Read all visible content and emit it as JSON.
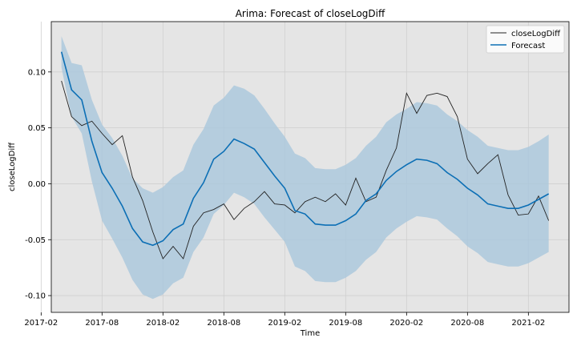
{
  "chart_data": {
    "type": "line",
    "title": "Arima: Forecast of closeLogDiff",
    "xlabel": "Time",
    "ylabel": "closeLogDiff",
    "xlim": [
      "2017-03-01",
      "2021-06-01"
    ],
    "ylim": [
      -0.115,
      0.145
    ],
    "x_ticks": [
      "2017-02",
      "2017-08",
      "2018-02",
      "2018-08",
      "2019-02",
      "2019-08",
      "2020-02",
      "2020-08",
      "2021-02"
    ],
    "y_ticks": [
      -0.1,
      -0.05,
      0.0,
      0.05,
      0.1
    ],
    "grid": true,
    "legend": "top-right",
    "colors": {
      "actual": "#222222",
      "forecast": "#0c6fb5",
      "band": "#a9c7dc",
      "plot_bg": "#e5e5e5"
    },
    "x": [
      "2017-04",
      "2017-05",
      "2017-06",
      "2017-07",
      "2017-08",
      "2017-09",
      "2017-10",
      "2017-11",
      "2017-12",
      "2018-01",
      "2018-02",
      "2018-03",
      "2018-04",
      "2018-05",
      "2018-06",
      "2018-07",
      "2018-08",
      "2018-09",
      "2018-10",
      "2018-11",
      "2018-12",
      "2019-01",
      "2019-02",
      "2019-03",
      "2019-04",
      "2019-05",
      "2019-06",
      "2019-07",
      "2019-08",
      "2019-09",
      "2019-10",
      "2019-11",
      "2019-12",
      "2020-01",
      "2020-02",
      "2020-03",
      "2020-04",
      "2020-05",
      "2020-06",
      "2020-07",
      "2020-08",
      "2020-09",
      "2020-10",
      "2020-11",
      "2020-12",
      "2021-01",
      "2021-02",
      "2021-03",
      "2021-04"
    ],
    "series": [
      {
        "name": "closeLogDiff",
        "values": [
          0.092,
          0.06,
          0.052,
          0.056,
          0.045,
          0.035,
          0.043,
          0.006,
          -0.015,
          -0.043,
          -0.067,
          -0.056,
          -0.067,
          -0.038,
          -0.026,
          -0.023,
          -0.018,
          -0.032,
          -0.022,
          -0.016,
          -0.007,
          -0.018,
          -0.019,
          -0.026,
          -0.016,
          -0.012,
          -0.016,
          -0.009,
          -0.019,
          0.005,
          -0.016,
          -0.012,
          0.012,
          0.032,
          0.081,
          0.063,
          0.079,
          0.081,
          0.078,
          0.06,
          0.022,
          0.009,
          0.018,
          0.026,
          -0.01,
          -0.028,
          -0.027,
          -0.011,
          -0.033
        ]
      },
      {
        "name": "Forecast",
        "values": [
          0.118,
          0.084,
          0.075,
          0.038,
          0.01,
          -0.004,
          -0.02,
          -0.04,
          -0.052,
          -0.055,
          -0.051,
          -0.041,
          -0.036,
          -0.013,
          0.001,
          0.022,
          0.029,
          0.04,
          0.036,
          0.031,
          0.019,
          0.007,
          -0.004,
          -0.024,
          -0.027,
          -0.036,
          -0.037,
          -0.037,
          -0.033,
          -0.027,
          -0.015,
          -0.009,
          0.003,
          0.011,
          0.017,
          0.022,
          0.021,
          0.018,
          0.01,
          0.004,
          -0.004,
          -0.01,
          -0.018,
          -0.02,
          -0.022,
          -0.022,
          -0.019,
          -0.014,
          -0.009
        ]
      }
    ],
    "band": {
      "upper": [
        0.132,
        0.108,
        0.106,
        0.075,
        0.053,
        0.041,
        0.025,
        0.005,
        -0.004,
        -0.008,
        -0.003,
        0.006,
        0.012,
        0.035,
        0.049,
        0.07,
        0.077,
        0.088,
        0.085,
        0.079,
        0.067,
        0.054,
        0.042,
        0.027,
        0.023,
        0.014,
        0.013,
        0.013,
        0.017,
        0.023,
        0.034,
        0.042,
        0.055,
        0.062,
        0.067,
        0.073,
        0.072,
        0.07,
        0.062,
        0.056,
        0.048,
        0.042,
        0.034,
        0.032,
        0.03,
        0.03,
        0.033,
        0.038,
        0.044
      ],
      "lower": [
        0.104,
        0.06,
        0.045,
        0.002,
        -0.033,
        -0.049,
        -0.066,
        -0.086,
        -0.099,
        -0.103,
        -0.099,
        -0.089,
        -0.084,
        -0.061,
        -0.048,
        -0.027,
        -0.019,
        -0.008,
        -0.012,
        -0.018,
        -0.03,
        -0.041,
        -0.052,
        -0.074,
        -0.078,
        -0.087,
        -0.088,
        -0.088,
        -0.084,
        -0.078,
        -0.068,
        -0.061,
        -0.048,
        -0.04,
        -0.034,
        -0.029,
        -0.03,
        -0.032,
        -0.04,
        -0.047,
        -0.056,
        -0.062,
        -0.07,
        -0.072,
        -0.074,
        -0.074,
        -0.071,
        -0.066,
        -0.061
      ]
    }
  }
}
